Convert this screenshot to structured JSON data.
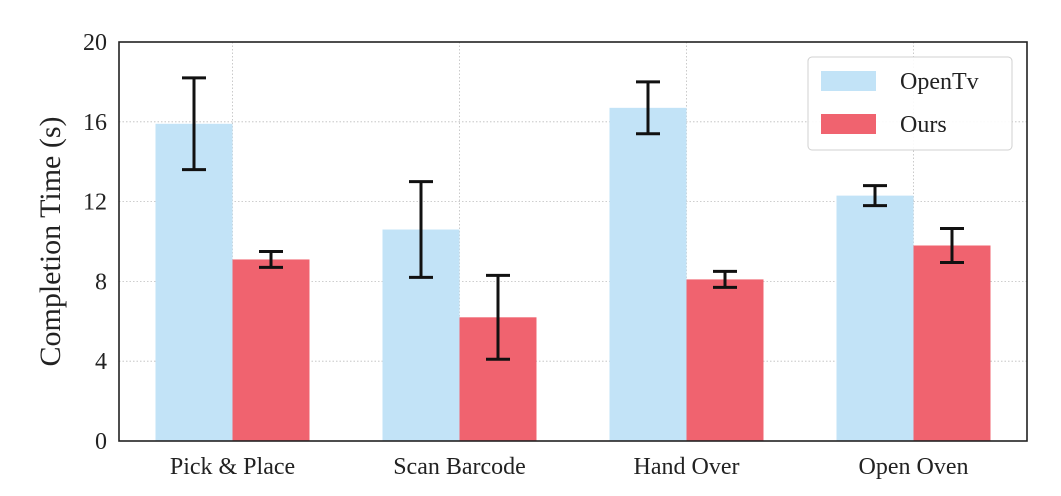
{
  "chart_data": {
    "type": "bar",
    "categories": [
      "Pick & Place",
      "Scan Barcode",
      "Hand Over",
      "Open Oven"
    ],
    "series": [
      {
        "name": "OpenTv",
        "color": "#c2e3f7",
        "values": [
          15.9,
          10.6,
          16.7,
          12.3
        ],
        "error": [
          2.3,
          2.4,
          1.3,
          0.5
        ]
      },
      {
        "name": "Ours",
        "color": "#f0636f",
        "values": [
          9.1,
          6.2,
          8.1,
          9.8
        ],
        "error": [
          0.4,
          2.1,
          0.4,
          0.85
        ]
      }
    ],
    "title": "",
    "xlabel": "",
    "ylabel": "Completion Time (s)",
    "ylim": [
      0,
      20
    ],
    "yticks": [
      "0",
      "4",
      "8",
      "12",
      "16",
      "20"
    ],
    "grid": true,
    "legend_position": "top-right"
  }
}
